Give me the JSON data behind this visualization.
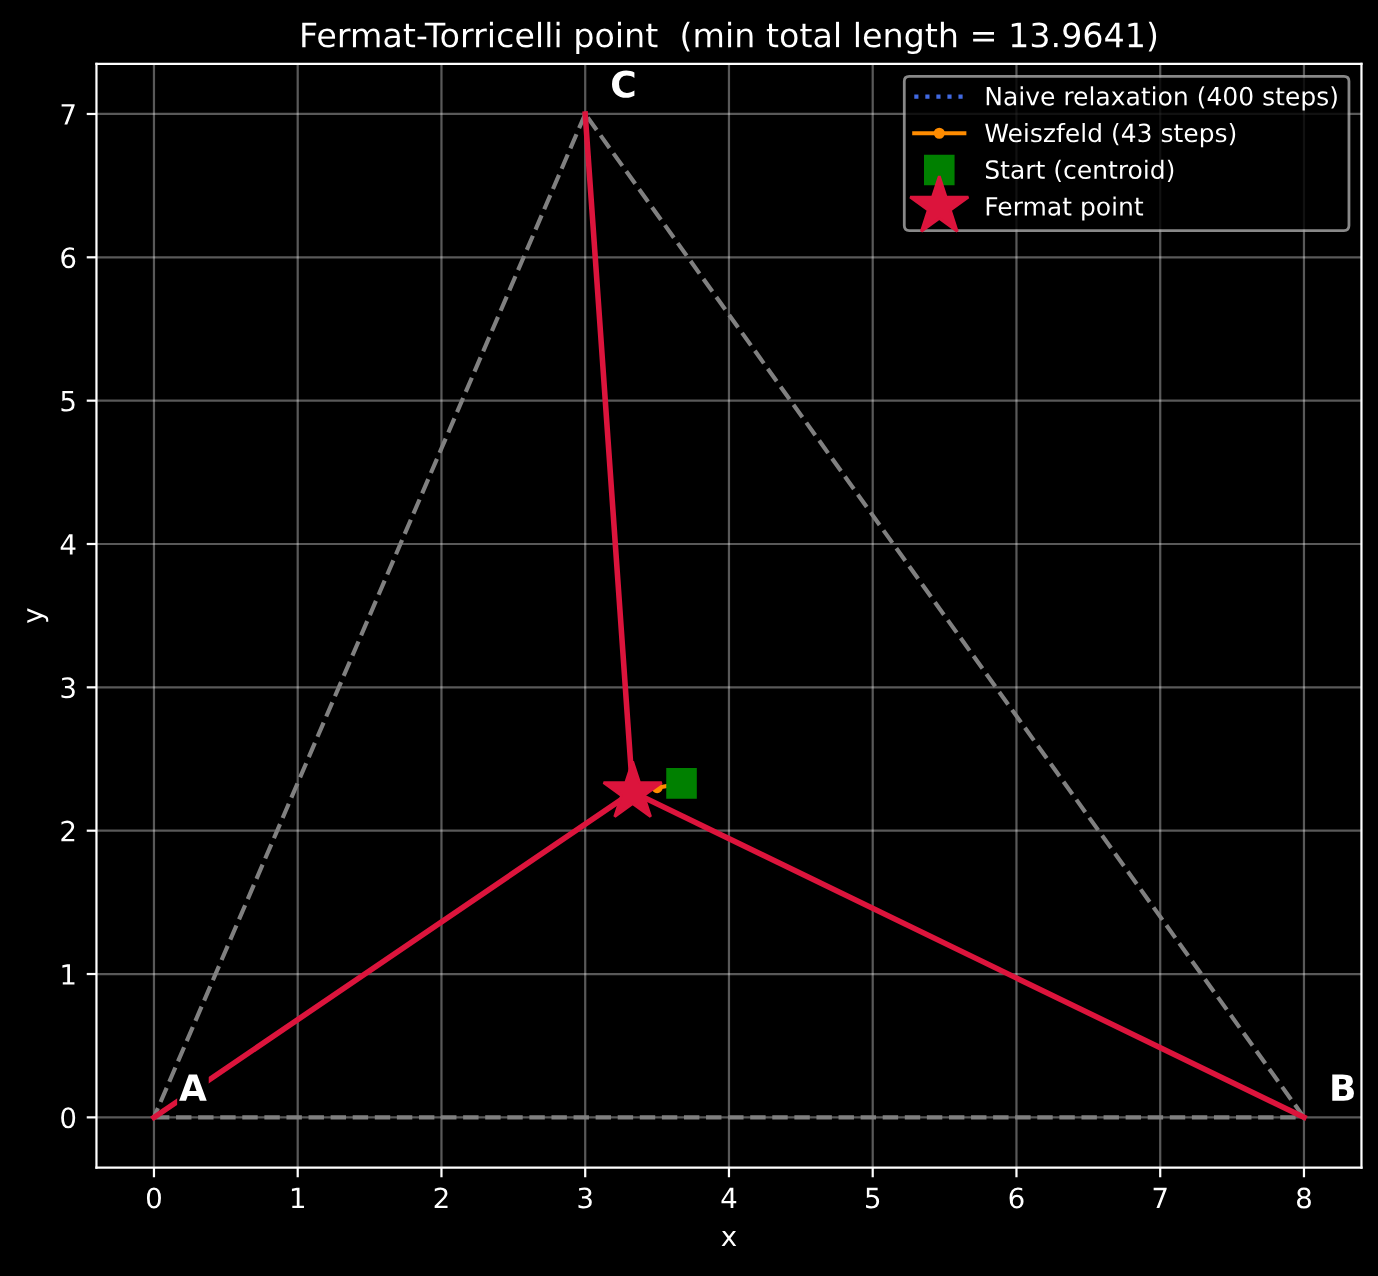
{
  "chart_data": {
    "type": "line",
    "title": "Fermat-Torricelli point  (min total length = 13.9641)",
    "xlabel": "x",
    "ylabel": "y",
    "xlim": [
      -0.4,
      8.4
    ],
    "ylim": [
      -0.35,
      7.35
    ],
    "xticks": [
      0,
      1,
      2,
      3,
      4,
      5,
      6,
      7,
      8
    ],
    "yticks": [
      0,
      1,
      2,
      3,
      4,
      5,
      6,
      7
    ],
    "grid": true,
    "legend": "top right",
    "series": [
      {
        "color": "#808080",
        "line_style": "dashed",
        "marker": "none",
        "x": [
          0,
          8
        ],
        "values": [
          0,
          0
        ]
      },
      {
        "color": "#808080",
        "line_style": "dashed",
        "marker": "none",
        "x": [
          8,
          3
        ],
        "values": [
          0,
          7
        ]
      },
      {
        "color": "#808080",
        "line_style": "dashed",
        "marker": "none",
        "x": [
          3,
          0
        ],
        "values": [
          7,
          0
        ]
      },
      {
        "color": "#dc143c",
        "line_style": "solid",
        "marker": "none",
        "x": [
          3.33,
          0
        ],
        "values": [
          2.27,
          0
        ]
      },
      {
        "color": "#dc143c",
        "line_style": "solid",
        "marker": "none",
        "x": [
          3.33,
          8
        ],
        "values": [
          2.27,
          0
        ]
      },
      {
        "color": "#dc143c",
        "line_style": "solid",
        "marker": "none",
        "x": [
          3.33,
          3
        ],
        "values": [
          2.27,
          7
        ]
      },
      {
        "name": "Naive relaxation (400 steps)",
        "color": "#4169e1",
        "line_style": "dotted",
        "marker": "none"
      },
      {
        "name": "Weiszfeld (43 steps)",
        "color": "#ff8c00",
        "line_style": "solid",
        "marker": "circle",
        "x": [
          3.67,
          3.5,
          3.33
        ],
        "values": [
          2.33,
          2.3,
          2.27
        ]
      },
      {
        "type": "scatter",
        "name": "Start (centroid)",
        "color": "#008000",
        "marker": "square",
        "x": [
          3.67
        ],
        "values": [
          2.33
        ]
      },
      {
        "type": "scatter",
        "name": "Fermat point",
        "color": "#dc143c",
        "marker": "star",
        "x": [
          3.33
        ],
        "values": [
          2.27
        ]
      }
    ],
    "annotations": [
      {
        "text": "A",
        "x": 0,
        "y": 0
      },
      {
        "text": "B",
        "x": 8,
        "y": 0
      },
      {
        "text": "C",
        "x": 3,
        "y": 7
      }
    ]
  }
}
